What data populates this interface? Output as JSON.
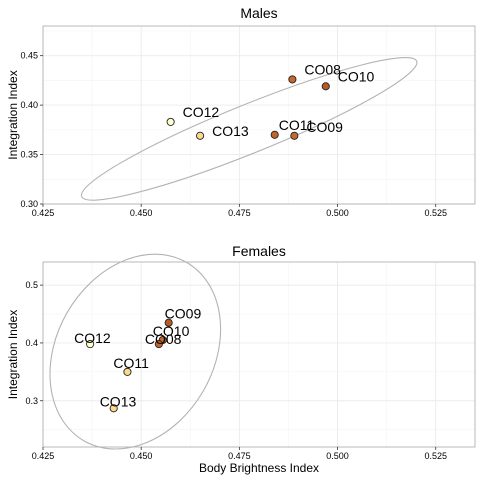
{
  "chart_data": [
    {
      "type": "scatter",
      "title": "Males",
      "xlabel": "",
      "ylabel": "Integration Index",
      "xlim": [
        0.425,
        0.535
      ],
      "ylim": [
        0.3,
        0.48
      ],
      "x_ticks": [
        0.425,
        0.45,
        0.475,
        0.5,
        0.525
      ],
      "x_tick_labels": [
        "0.425",
        "0.450",
        "0.475",
        "0.500",
        "0.525"
      ],
      "y_ticks": [
        0.3,
        0.35,
        0.4,
        0.45
      ],
      "y_tick_labels": [
        "0.30",
        "0.35",
        "0.40",
        "0.45"
      ],
      "grid": true,
      "points": [
        {
          "label": "CO08",
          "x": 0.4885,
          "y": 0.426,
          "color": "#c5682b"
        },
        {
          "label": "CO10",
          "x": 0.497,
          "y": 0.419,
          "color": "#b85a22"
        },
        {
          "label": "CO12",
          "x": 0.4575,
          "y": 0.383,
          "color": "#ffffcc"
        },
        {
          "label": "CO13",
          "x": 0.465,
          "y": 0.369,
          "color": "#fdd98a"
        },
        {
          "label": "CO11",
          "x": 0.484,
          "y": 0.37,
          "color": "#c36428"
        },
        {
          "label": "CO09",
          "x": 0.489,
          "y": 0.369,
          "color": "#c56a2d"
        }
      ],
      "ellipse": {
        "cx": 0.4775,
        "cy": 0.376,
        "rx": 0.046,
        "ry": 0.0245,
        "angle_deg": -22
      }
    },
    {
      "type": "scatter",
      "title": "Females",
      "xlabel": "Body Brightness Index",
      "ylabel": "Integration Index",
      "xlim": [
        0.425,
        0.535
      ],
      "ylim": [
        0.22,
        0.54
      ],
      "x_ticks": [
        0.425,
        0.45,
        0.475,
        0.5,
        0.525
      ],
      "x_tick_labels": [
        "0.425",
        "0.450",
        "0.475",
        "0.500",
        "0.525"
      ],
      "y_ticks": [
        0.3,
        0.4,
        0.5
      ],
      "y_tick_labels": [
        "0.3",
        "0.4",
        "0.5"
      ],
      "grid": true,
      "points": [
        {
          "label": "CO09",
          "x": 0.457,
          "y": 0.435,
          "color": "#b85a22"
        },
        {
          "label": "CO10",
          "x": 0.4555,
          "y": 0.405,
          "color": "#c5682b"
        },
        {
          "label": "CO08",
          "x": 0.4545,
          "y": 0.398,
          "color": "#c36428"
        },
        {
          "label": "CO12",
          "x": 0.437,
          "y": 0.398,
          "color": "#ffffcc"
        },
        {
          "label": "CO11",
          "x": 0.4465,
          "y": 0.35,
          "color": "#fdd98a"
        },
        {
          "label": "CO13",
          "x": 0.443,
          "y": 0.287,
          "color": "#fdd98a"
        }
      ],
      "ellipse": {
        "cx": 0.4485,
        "cy": 0.385,
        "rx": 0.02,
        "ry": 0.178,
        "angle_deg": 30
      }
    }
  ]
}
